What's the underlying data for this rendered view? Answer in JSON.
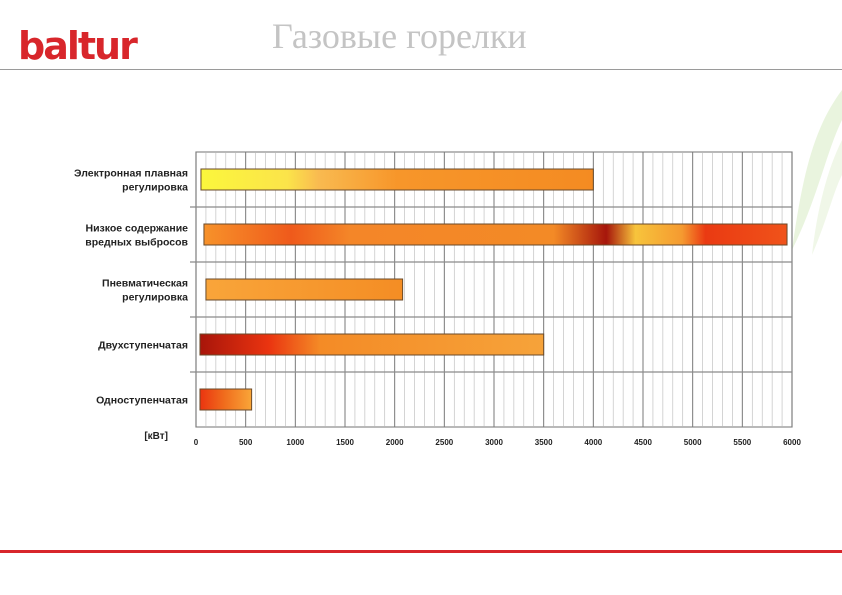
{
  "header": {
    "logo_text": "baltur",
    "title": "Газовые горелки",
    "brand_color": "#d8262b"
  },
  "chart_data": {
    "type": "bar",
    "orientation": "horizontal",
    "title": "Газовые горелки",
    "xlabel": "[кВт]",
    "xlim": [
      0,
      6000
    ],
    "grid": true,
    "xticks": [
      0,
      500,
      1000,
      1500,
      2000,
      2500,
      3000,
      3500,
      4000,
      4500,
      5000,
      5500,
      6000
    ],
    "categories": [
      [
        "Электронная плавная",
        "регулировка"
      ],
      [
        "Низкое содержание",
        "вредных выбросов"
      ],
      [
        "Пневматическая",
        "регулировка"
      ],
      [
        "Двухступенчатая"
      ],
      [
        "Одноступенчатая"
      ]
    ],
    "ranges": [
      {
        "start": 50,
        "end": 4000
      },
      {
        "start": 80,
        "end": 5950
      },
      {
        "start": 100,
        "end": 2080
      },
      {
        "start": 40,
        "end": 3500
      },
      {
        "start": 40,
        "end": 560
      }
    ],
    "colors": {
      "bar_main": "#f7962a",
      "bar_dark": "#b3180c",
      "bar_light": "#f9f03a",
      "bar_red": "#ea3410"
    }
  }
}
